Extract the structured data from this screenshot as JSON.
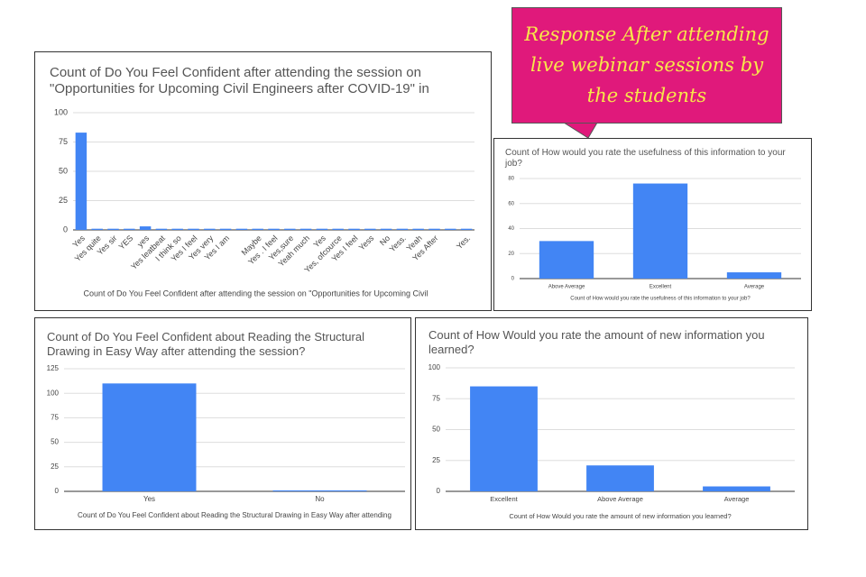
{
  "callout": "Response After attending live webinar sessions by the students",
  "chart_data": [
    {
      "type": "bar",
      "title": "Count of Do You Feel Confident after attending the session on \"Opportunities for Upcoming Civil Engineers after COVID-19\" in",
      "x_label": "Count of Do You Feel Confident after attending the session on \"Opportunities for Upcoming Civil",
      "categories": [
        "Yes",
        "Yes quite",
        "Yes sir",
        "YES",
        "yes",
        "Yes leatbeat",
        "I think so",
        "Yes I feel",
        "Yes very",
        "Yes I am",
        null,
        "Maybe",
        "Yes . I feel",
        "Yes,sure",
        "Yeah much",
        "Yes",
        "Yes, ofcource",
        "Yes I feel",
        "Yess",
        "No",
        "Yess.",
        "Yeah",
        "Yes After",
        null,
        "Yes."
      ],
      "values": [
        83,
        1,
        1,
        1,
        3,
        1,
        1,
        1,
        1,
        1,
        1,
        1,
        1,
        1,
        1,
        1,
        1,
        1,
        1,
        1,
        1,
        1,
        1,
        1,
        1
      ],
      "color": "#4285f4",
      "ylim": [
        0,
        100
      ],
      "yticks": [
        0,
        25,
        50,
        75,
        100
      ],
      "grid": true
    },
    {
      "type": "bar",
      "title": "Count of How would you rate the usefulness of this information to your job?",
      "x_label": "Count of How would you rate the usefulness of this information to your job?",
      "categories": [
        "Above Average",
        "Excellent",
        "Average"
      ],
      "values": [
        30,
        76,
        5
      ],
      "color": "#4285f4",
      "ylim": [
        0,
        80
      ],
      "yticks": [
        0,
        20,
        40,
        60,
        80
      ],
      "grid": true
    },
    {
      "type": "bar",
      "title": "Count of Do You Feel Confident about Reading the Structural Drawing in Easy Way after attending the session?",
      "x_label": "Count of Do You Feel Confident about Reading the Structural Drawing in Easy Way after attending",
      "categories": [
        "Yes",
        "No"
      ],
      "values": [
        110,
        1
      ],
      "color": "#4285f4",
      "ylim": [
        0,
        125
      ],
      "yticks": [
        0,
        25,
        50,
        75,
        100,
        125
      ],
      "grid": true
    },
    {
      "type": "bar",
      "title": "Count of How Would you rate the amount of new information you learned?",
      "x_label": "Count of How Would you rate the amount of new information you learned?",
      "categories": [
        "Excellent",
        "Above Average",
        "Average"
      ],
      "values": [
        85,
        21,
        4
      ],
      "color": "#4285f4",
      "ylim": [
        0,
        100
      ],
      "yticks": [
        0,
        25,
        50,
        75,
        100
      ],
      "grid": true
    }
  ]
}
